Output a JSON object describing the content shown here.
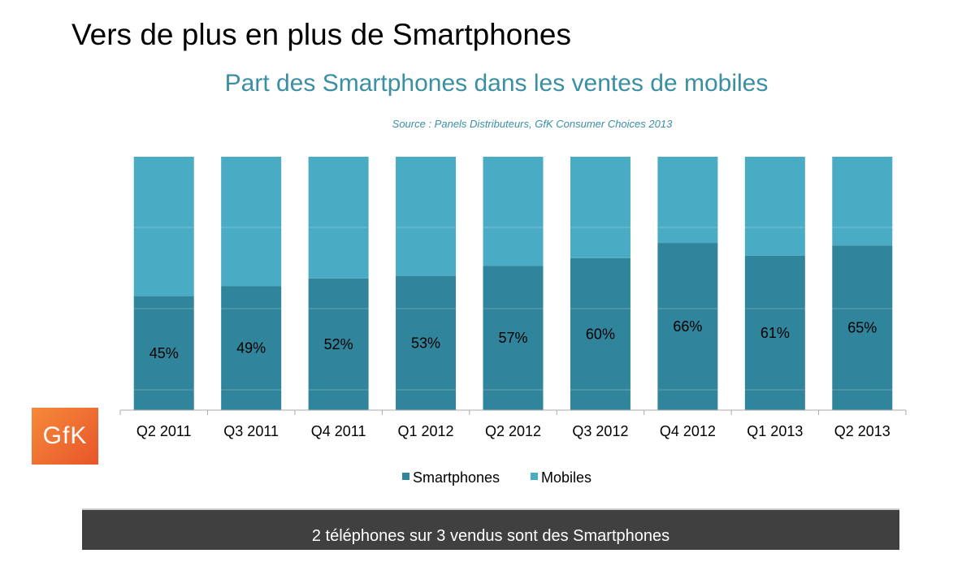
{
  "slide_title": "Vers de plus en plus de Smartphones",
  "logo_text": "GfK",
  "banner": "2 téléphones sur 3 vendus sont des Smartphones",
  "chart_data": {
    "type": "bar",
    "stacked": true,
    "title": "Part des Smartphones dans les ventes de mobiles",
    "subtitle": "Source : Panels Distributeurs, GfK Consumer Choices 2013",
    "categories": [
      "Q2 2011",
      "Q3 2011",
      "Q4 2011",
      "Q1 2012",
      "Q2 2012",
      "Q3 2012",
      "Q4 2012",
      "Q1 2013",
      "Q2 2013"
    ],
    "series": [
      {
        "name": "Smartphones",
        "color": "#30849b",
        "values": [
          45,
          49,
          52,
          53,
          57,
          60,
          66,
          61,
          65
        ]
      },
      {
        "name": "Mobiles",
        "color": "#4aabc5",
        "values": [
          55,
          51,
          48,
          47,
          43,
          40,
          34,
          39,
          35
        ]
      }
    ],
    "data_labels": [
      "45%",
      "49%",
      "52%",
      "53%",
      "57%",
      "60%",
      "66%",
      "61%",
      "65%"
    ],
    "ylim": [
      0,
      100
    ],
    "legend": "bottom",
    "grid": false
  }
}
